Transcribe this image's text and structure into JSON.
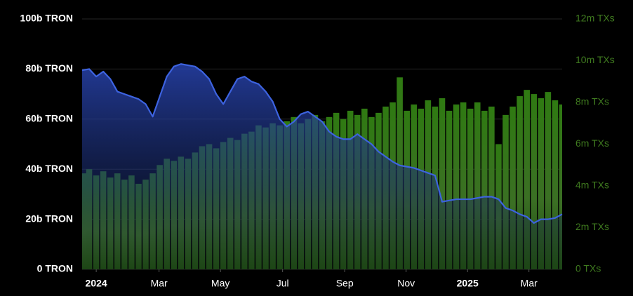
{
  "chart_data": {
    "type": "combo",
    "categories": [
      null,
      null,
      null,
      null,
      null,
      null,
      null,
      null,
      null,
      null,
      null,
      null,
      null,
      null,
      null,
      null,
      null,
      null,
      null,
      null,
      null,
      null,
      null,
      null,
      null,
      null,
      null,
      null,
      null,
      null,
      null,
      null,
      null,
      null,
      null,
      null,
      null,
      null,
      null,
      null,
      null,
      null,
      null,
      null,
      null,
      null,
      null,
      null,
      null,
      null,
      null,
      null,
      null,
      null,
      null,
      null,
      null,
      null,
      null,
      null,
      null,
      null,
      null,
      null,
      null,
      null,
      null,
      null,
      null
    ],
    "xticks": [
      {
        "value": 2,
        "label": "2024"
      },
      {
        "value": 10.9,
        "label": "Mar"
      },
      {
        "value": 19.6,
        "label": "May"
      },
      {
        "value": 28.4,
        "label": "Jul"
      },
      {
        "value": 37.2,
        "label": "Sep"
      },
      {
        "value": 45.9,
        "label": "Nov"
      },
      {
        "value": 54.6,
        "label": "2025"
      },
      {
        "value": 63.3,
        "label": "Mar"
      }
    ],
    "series": [
      {
        "type": "area",
        "color": "#3d63e0",
        "values": [
          79.5,
          80,
          77,
          79,
          76,
          71,
          70,
          69,
          68,
          66,
          61,
          69,
          77,
          81,
          82,
          81.5,
          81,
          79,
          76,
          70,
          66,
          71,
          76,
          77,
          75,
          74,
          71,
          67,
          60,
          57,
          59,
          62,
          63,
          61,
          59,
          55,
          53,
          52,
          52,
          54,
          52,
          50,
          47,
          45,
          43,
          41.5,
          41,
          40.5,
          39.5,
          38.5,
          37.5,
          27,
          27.5,
          28,
          28,
          28,
          28.5,
          29,
          29,
          28,
          24.5,
          23.5,
          22,
          21,
          18.5,
          20,
          20,
          20.5,
          22
        ]
      },
      {
        "type": "bar",
        "axis": "y2",
        "color": "#3f8a1e",
        "values": [
          4.6,
          4.8,
          4.5,
          4.7,
          4.4,
          4.6,
          4.3,
          4.5,
          4.1,
          4.3,
          4.6,
          5.0,
          5.3,
          5.2,
          5.4,
          5.3,
          5.6,
          5.9,
          6.0,
          5.8,
          6.1,
          6.3,
          6.2,
          6.5,
          6.6,
          6.9,
          6.8,
          7.0,
          6.9,
          7.1,
          7.3,
          7.0,
          7.2,
          7.4,
          7.1,
          7.3,
          7.5,
          7.2,
          7.6,
          7.4,
          7.7,
          7.3,
          7.5,
          7.8,
          8.0,
          9.2,
          7.6,
          7.9,
          7.7,
          8.1,
          7.8,
          8.2,
          7.6,
          7.9,
          8.0,
          7.7,
          8.0,
          7.6,
          7.8,
          6.0,
          7.4,
          7.8,
          8.3,
          8.6,
          8.4,
          8.2,
          8.5,
          8.1,
          7.9
        ]
      }
    ],
    "ylim": [
      0,
      100
    ],
    "yticks": [
      {
        "value": 0,
        "label": "0 TRON"
      },
      {
        "value": 20,
        "label": "20b TRON"
      },
      {
        "value": 40,
        "label": "40b TRON"
      },
      {
        "value": 60,
        "label": "60b TRON"
      },
      {
        "value": 80,
        "label": "80b TRON"
      },
      {
        "value": 100,
        "label": "100b TRON"
      }
    ],
    "y2lim": [
      0,
      12
    ],
    "y2ticks": [
      {
        "value": 0,
        "label": "0 TXs"
      },
      {
        "value": 2,
        "label": "2m TXs"
      },
      {
        "value": 4,
        "label": "4m TXs"
      },
      {
        "value": 6,
        "label": "6m TXs"
      },
      {
        "value": 8,
        "label": "8m TXs"
      },
      {
        "value": 10,
        "label": "10m TXs"
      },
      {
        "value": 12,
        "label": "12m TXs"
      }
    ],
    "grid": true
  }
}
